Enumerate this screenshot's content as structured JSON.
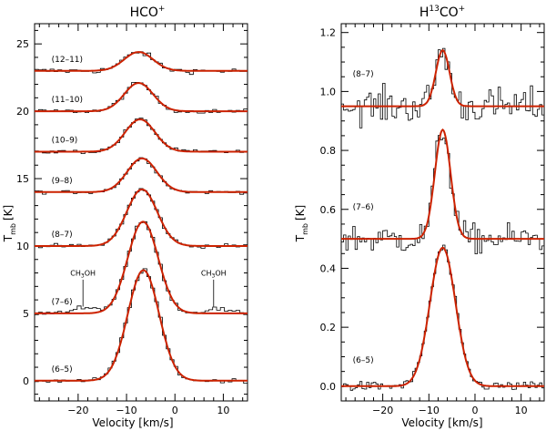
{
  "chart_data": [
    {
      "type": "line",
      "title_main": "HCO",
      "title_sup": "+",
      "xlabel": "Velocity [km/s]",
      "ylabel_main": "T",
      "ylabel_sub": "mb",
      "ylabel_unit": "[K]",
      "xlim": [
        -29,
        15
      ],
      "ylim": [
        -1.5,
        26.5
      ],
      "xticks": [
        -20,
        -10,
        0,
        10
      ],
      "xtick_labels": [
        "−20",
        "−10",
        "0",
        "10"
      ],
      "yticks": [
        0,
        5,
        10,
        15,
        20,
        25
      ],
      "ytick_labels": [
        "0",
        "5",
        "10",
        "15",
        "20",
        "25"
      ],
      "series": [
        {
          "name": "(12–11)",
          "baseline": 23.0,
          "amplitude": 1.4,
          "center": -7.5,
          "fwhm": 7.0,
          "noise": 0.2
        },
        {
          "name": "(11–10)",
          "baseline": 20.0,
          "amplitude": 2.1,
          "center": -7.5,
          "fwhm": 7.0,
          "noise": 0.15
        },
        {
          "name": "(10–9)",
          "baseline": 17.0,
          "amplitude": 2.4,
          "center": -7.2,
          "fwhm": 7.2,
          "noise": 0.15
        },
        {
          "name": "(9–8)",
          "baseline": 14.0,
          "amplitude": 2.5,
          "center": -6.8,
          "fwhm": 7.2,
          "noise": 0.12
        },
        {
          "name": "(8–7)",
          "baseline": 10.0,
          "amplitude": 4.2,
          "center": -6.8,
          "fwhm": 7.4,
          "noise": 0.15
        },
        {
          "name": "(7–6)",
          "baseline": 5.0,
          "amplitude": 6.8,
          "center": -6.6,
          "fwhm": 7.4,
          "noise": 0.15
        },
        {
          "name": "(6–5)",
          "baseline": 0.0,
          "amplitude": 8.2,
          "center": -6.5,
          "fwhm": 7.6,
          "noise": 0.15
        }
      ],
      "annotations": [
        {
          "text": "CH",
          "sub": "3",
          "rest": "OH",
          "x": -19,
          "line_top": 6.2,
          "line_bottom": 5.4
        },
        {
          "text": "CH",
          "sub": "3",
          "rest": "OH",
          "x": 8,
          "line_top": 6.2,
          "line_bottom": 5.4
        }
      ]
    },
    {
      "type": "line",
      "title_main": "H",
      "title_sup_iso": "13",
      "title_rest": "CO",
      "title_sup": "+",
      "xlabel": "Velocity [km/s]",
      "ylabel_main": "T",
      "ylabel_sub": "mb",
      "ylabel_unit": "[K]",
      "xlim": [
        -29,
        15
      ],
      "ylim": [
        -0.05,
        1.23
      ],
      "xticks": [
        -20,
        -10,
        0,
        10
      ],
      "xtick_labels": [
        "−20",
        "−10",
        "0",
        "10"
      ],
      "yticks": [
        0.0,
        0.2,
        0.4,
        0.6,
        0.8,
        1.0,
        1.2
      ],
      "ytick_labels": [
        "0.0",
        "0.2",
        "0.4",
        "0.6",
        "0.8",
        "1.0",
        "1.2"
      ],
      "series": [
        {
          "name": "(8–7)",
          "baseline": 0.95,
          "amplitude": 0.19,
          "center": -7.0,
          "fwhm": 3.5,
          "noise": 0.06
        },
        {
          "name": "(7–6)",
          "baseline": 0.5,
          "amplitude": 0.37,
          "center": -7.0,
          "fwhm": 4.0,
          "noise": 0.05
        },
        {
          "name": "(6–5)",
          "baseline": 0.0,
          "amplitude": 0.47,
          "center": -7.0,
          "fwhm": 6.5,
          "noise": 0.015
        }
      ]
    }
  ],
  "colors": {
    "fit": "#cc2200",
    "data": "#000000",
    "axis": "#000000"
  }
}
